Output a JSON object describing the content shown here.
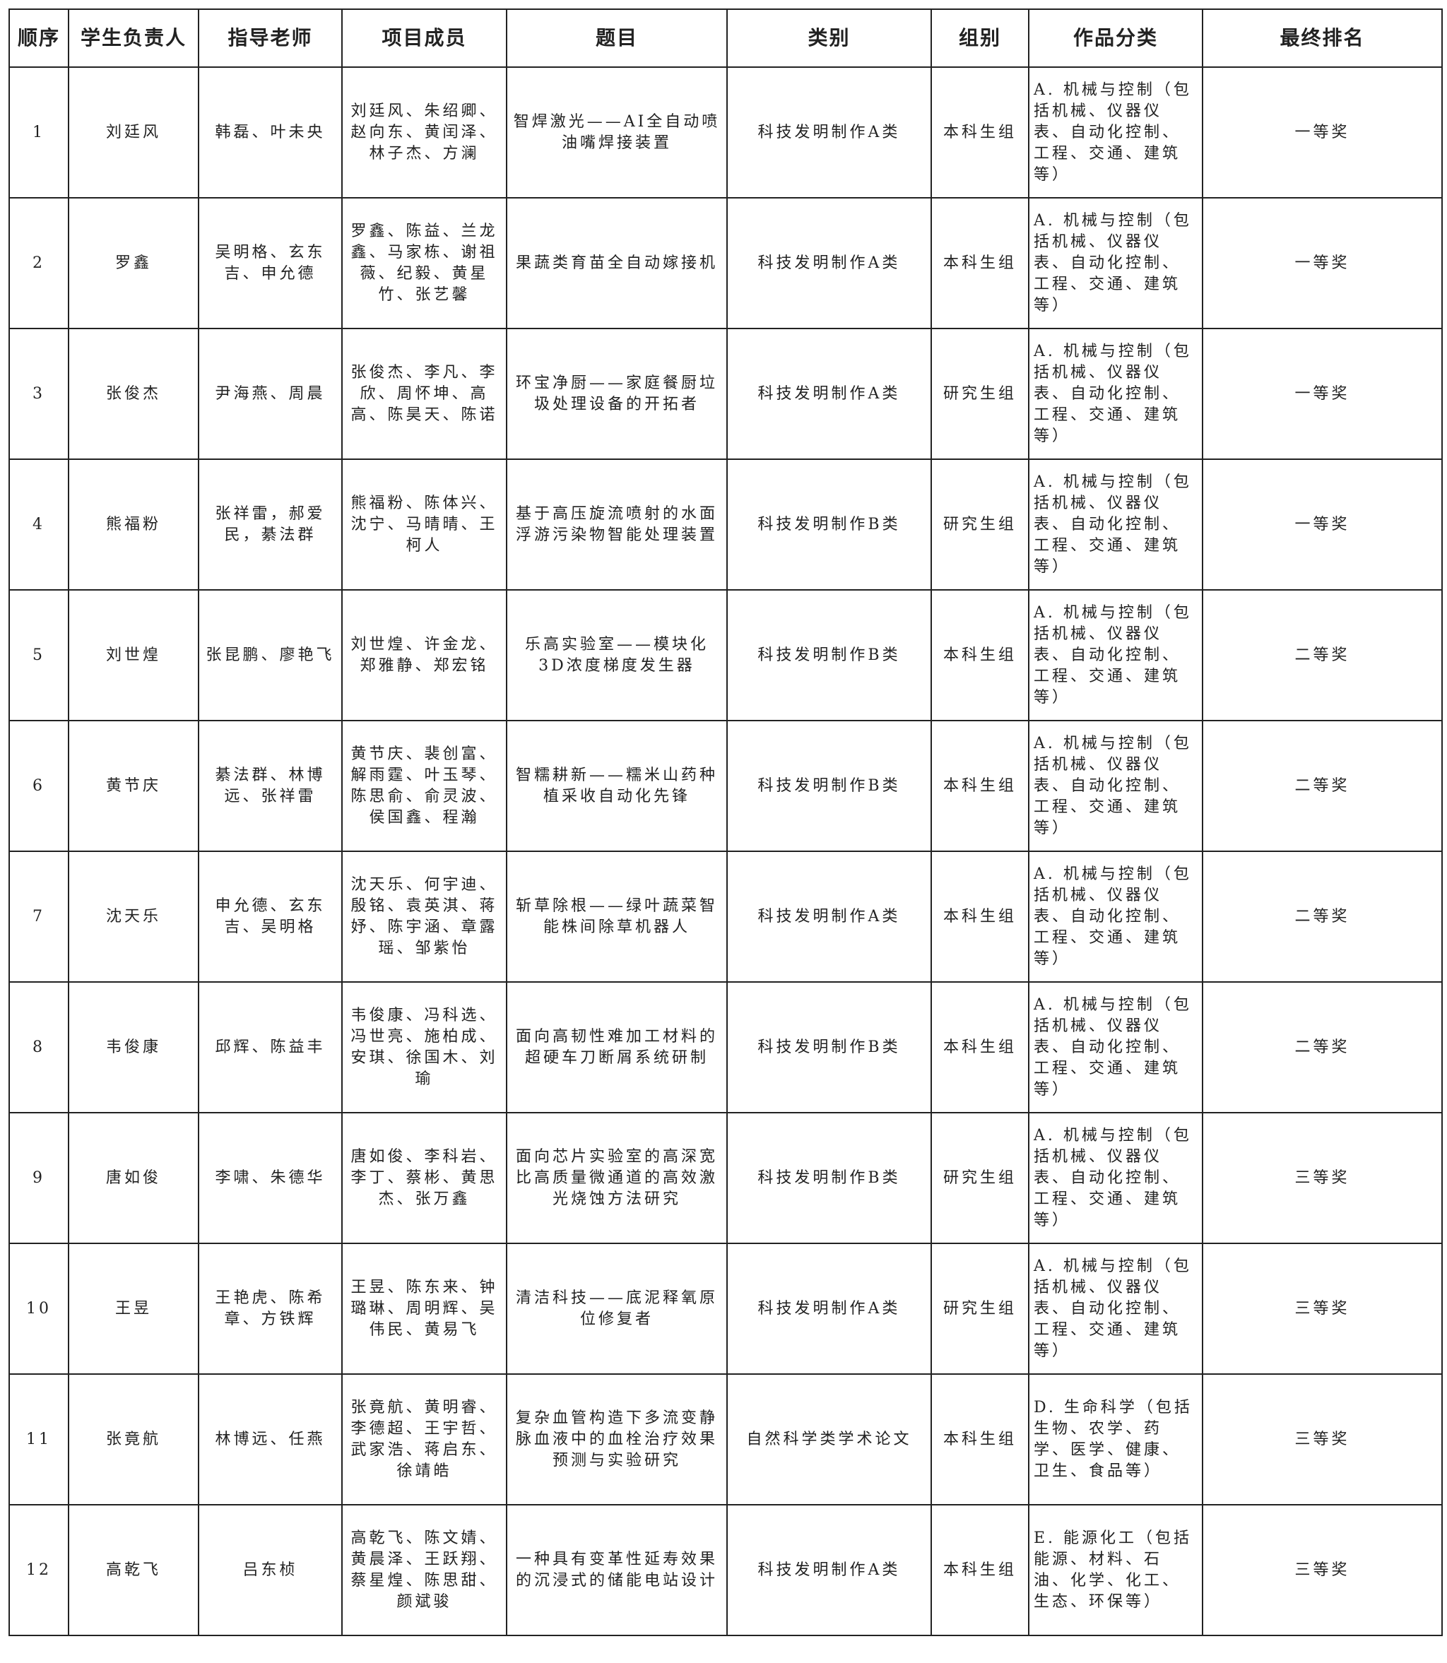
{
  "headers": [
    "顺序",
    "学生负责人",
    "指导老师",
    "项目成员",
    "题目",
    "类别",
    "组别",
    "作品分类",
    "最终排名"
  ],
  "rows": [
    {
      "no": "1",
      "leader": "刘廷风",
      "advisors": "韩磊、叶未央",
      "members": "刘廷风、朱绍卿、赵向东、黄闰泽、林子杰、方澜",
      "title": "智焊激光——AI全自动喷油嘴焊接装置",
      "category": "科技发明制作A类",
      "group": "本科生组",
      "field": "A. 机械与控制（包括机械、仪器仪表、自动化控制、工程、交通、建筑等）",
      "rank": "一等奖"
    },
    {
      "no": "2",
      "leader": "罗鑫",
      "advisors": "吴明格、玄东吉、申允德",
      "members": "罗鑫、陈益、兰龙鑫、马家栋、谢祖薇、纪毅、黄星竹、张艺馨",
      "title": "果蔬类育苗全自动嫁接机",
      "category": "科技发明制作A类",
      "group": "本科生组",
      "field": "A. 机械与控制（包括机械、仪器仪表、自动化控制、工程、交通、建筑等）",
      "rank": "一等奖"
    },
    {
      "no": "3",
      "leader": "张俊杰",
      "advisors": "尹海燕、周晨",
      "members": "张俊杰、李凡、李欣、周怀坤、高高、陈昊天、陈诺",
      "title": "环宝净厨——家庭餐厨垃圾处理设备的开拓者",
      "category": "科技发明制作A类",
      "group": "研究生组",
      "field": "A. 机械与控制（包括机械、仪器仪表、自动化控制、工程、交通、建筑等）",
      "rank": "一等奖"
    },
    {
      "no": "4",
      "leader": "熊福粉",
      "advisors": "张祥雷，郝爱民，綦法群",
      "members": "熊福粉、陈体兴、沈宁、马晴晴、王柯人",
      "title": "基于高压旋流喷射的水面浮游污染物智能处理装置",
      "category": "科技发明制作B类",
      "group": "研究生组",
      "field": "A. 机械与控制（包括机械、仪器仪表、自动化控制、工程、交通、建筑等）",
      "rank": "一等奖"
    },
    {
      "no": "5",
      "leader": "刘世煌",
      "advisors": "张昆鹏、廖艳飞",
      "members": "刘世煌、许金龙、郑雅静、郑宏铭",
      "title": "乐高实验室——模块化3D浓度梯度发生器",
      "category": "科技发明制作B类",
      "group": "本科生组",
      "field": "A. 机械与控制（包括机械、仪器仪表、自动化控制、工程、交通、建筑等）",
      "rank": "二等奖"
    },
    {
      "no": "6",
      "leader": "黄节庆",
      "advisors": "綦法群、林博远、张祥雷",
      "members": "黄节庆、裴创富、解雨霆、叶玉琴、陈思俞、俞灵波、侯国鑫、程瀚",
      "title": "智糯耕新——糯米山药种植采收自动化先锋",
      "category": "科技发明制作B类",
      "group": "本科生组",
      "field": "A. 机械与控制（包括机械、仪器仪表、自动化控制、工程、交通、建筑等）",
      "rank": "二等奖"
    },
    {
      "no": "7",
      "leader": "沈天乐",
      "advisors": "申允德、玄东吉、吴明格",
      "members": "沈天乐、何宇迪、殷铭、袁英淇、蒋妤、陈宇涵、章露瑶、邹紫怡",
      "title": "斩草除根——绿叶蔬菜智能株间除草机器人",
      "category": "科技发明制作A类",
      "group": "本科生组",
      "field": "A. 机械与控制（包括机械、仪器仪表、自动化控制、工程、交通、建筑等）",
      "rank": "二等奖"
    },
    {
      "no": "8",
      "leader": "韦俊康",
      "advisors": "邱辉、陈益丰",
      "members": "韦俊康、冯科选、冯世亮、施柏成、安琪、徐国木、刘瑜",
      "title": "面向高韧性难加工材料的超硬车刀断屑系统研制",
      "category": "科技发明制作B类",
      "group": "本科生组",
      "field": "A. 机械与控制（包括机械、仪器仪表、自动化控制、工程、交通、建筑等）",
      "rank": "二等奖"
    },
    {
      "no": "9",
      "leader": "唐如俊",
      "advisors": "李啸、朱德华",
      "members": "唐如俊、李科岩、李丁、蔡彬、黄思杰、张万鑫",
      "title": "面向芯片实验室的高深宽比高质量微通道的高效激光烧蚀方法研究",
      "category": "科技发明制作B类",
      "group": "研究生组",
      "field": "A. 机械与控制（包括机械、仪器仪表、自动化控制、工程、交通、建筑等）",
      "rank": "三等奖"
    },
    {
      "no": "10",
      "leader": "王昱",
      "advisors": "王艳虎、陈希章、方铁辉",
      "members": "王昱、陈东来、钟璐琳、周明辉、吴伟民、黄易飞",
      "title": "清洁科技——底泥释氧原位修复者",
      "category": "科技发明制作A类",
      "group": "研究生组",
      "field": "A. 机械与控制（包括机械、仪器仪表、自动化控制、工程、交通、建筑等）",
      "rank": "三等奖"
    },
    {
      "no": "11",
      "leader": "张竟航",
      "advisors": "林博远、任燕",
      "members": "张竟航、黄明睿、李德超、王宇哲、武家浩、蒋启东、徐靖皓",
      "title": "复杂血管构造下多流变静脉血液中的血栓治疗效果预测与实验研究",
      "category": "自然科学类学术论文",
      "group": "本科生组",
      "field": "D. 生命科学（包括生物、农学、药学、医学、健康、卫生、食品等）",
      "rank": "三等奖"
    },
    {
      "no": "12",
      "leader": "高乾飞",
      "advisors": "吕东桢",
      "members": "高乾飞、陈文婧、黄晨泽、王跃翔、蔡星煌、陈思甜、颜斌骏",
      "title": "一种具有变革性延寿效果的沉浸式的储能电站设计",
      "category": "科技发明制作A类",
      "group": "本科生组",
      "field": "E. 能源化工（包括能源、材料、石油、化学、化工、生态、环保等）",
      "rank": "三等奖"
    }
  ]
}
